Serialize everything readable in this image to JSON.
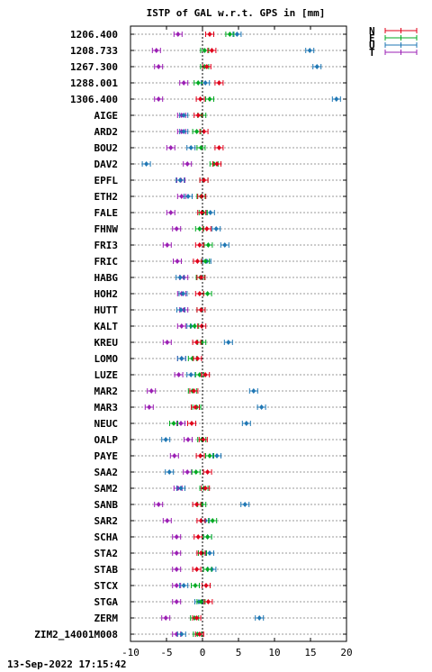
{
  "chart_data": {
    "type": "scatter",
    "title": "ISTP of GAL w.r.t. GPS in [mm]",
    "xlim": [
      -10,
      20
    ],
    "x_ticks": [
      -10,
      -5,
      0,
      5,
      10,
      15,
      20
    ],
    "grid": true,
    "legend_position": "top-right",
    "footer": "13-Sep-2022 17:15:42",
    "categories": [
      "1206.400",
      "1208.733",
      "1267.300",
      "1288.001",
      "1306.400",
      "AIGE",
      "ARD2",
      "BOU2",
      "DAV2",
      "EPFL",
      "ETH2",
      "FALE",
      "FHNW",
      "FRI3",
      "FRIC",
      "HABG",
      "HOH2",
      "HUTT",
      "KALT",
      "KREU",
      "LOMO",
      "LUZE",
      "MAR2",
      "MAR3",
      "NEUC",
      "OALP",
      "PAYE",
      "SAA2",
      "SAM2",
      "SANB",
      "SAR2",
      "SCHA",
      "STA2",
      "STAB",
      "STCX",
      "STGA",
      "ZERM",
      "ZIM2_14001M008"
    ],
    "series": [
      {
        "name": "N",
        "color": "#e0001a",
        "values": [
          1.0,
          1.3,
          0.6,
          2.3,
          -0.3,
          -0.6,
          0.2,
          2.3,
          2.0,
          0.2,
          -0.1,
          -0.1,
          0.6,
          -0.4,
          -0.7,
          -0.2,
          -0.4,
          -0.2,
          -0.1,
          -0.8,
          -0.7,
          0.4,
          -1.2,
          -1.0,
          -1.5,
          0.1,
          -0.3,
          0.7,
          0.4,
          -0.8,
          -0.2,
          -0.6,
          -0.2,
          -0.8,
          0.5,
          0.8,
          -0.8,
          -0.4
        ]
      },
      {
        "name": "E",
        "color": "#00aa22",
        "values": [
          3.8,
          0.3,
          0.3,
          -0.6,
          1.0,
          -0.1,
          -0.8,
          -0.2,
          1.6,
          0.2,
          -0.2,
          0.1,
          -0.4,
          0.8,
          0.4,
          -0.3,
          0.7,
          -0.2,
          -1.1,
          -0.1,
          -1.4,
          -0.4,
          -1.4,
          -0.8,
          -4.0,
          -0.1,
          1.0,
          -0.9,
          0.2,
          -0.1,
          1.4,
          0.7,
          0.0,
          0.7,
          -1.0,
          -0.2,
          -1.1,
          -0.7
        ]
      },
      {
        "name": "U",
        "color": "#1f77b4",
        "values": [
          4.8,
          14.9,
          15.9,
          0.4,
          18.6,
          -2.6,
          -2.6,
          -1.6,
          -7.8,
          -3.1,
          -2.0,
          1.1,
          1.9,
          3.1,
          0.6,
          -3.1,
          -2.7,
          -3.0,
          -1.6,
          3.6,
          -2.9,
          -1.6,
          7.1,
          8.2,
          6.1,
          -5.1,
          2.0,
          -4.6,
          -3.0,
          5.9,
          0.4,
          0.7,
          1.0,
          1.3,
          -2.6,
          -0.5,
          7.9,
          -2.9
        ]
      },
      {
        "name": "T",
        "color": "#9b1fb4",
        "values": [
          -3.4,
          -6.4,
          -6.1,
          -2.6,
          -6.1,
          -2.9,
          -2.9,
          -4.4,
          -2.1,
          -3.0,
          -2.9,
          -4.4,
          -3.6,
          -4.9,
          -3.5,
          -2.6,
          -2.9,
          -2.6,
          -2.9,
          -4.9,
          -2.9,
          -3.3,
          -7.1,
          -7.4,
          -3.0,
          -2.0,
          -3.9,
          -2.1,
          -3.4,
          -6.1,
          -4.9,
          -3.6,
          -3.6,
          -3.6,
          -3.6,
          -3.6,
          -5.1,
          -3.6
        ]
      }
    ]
  }
}
